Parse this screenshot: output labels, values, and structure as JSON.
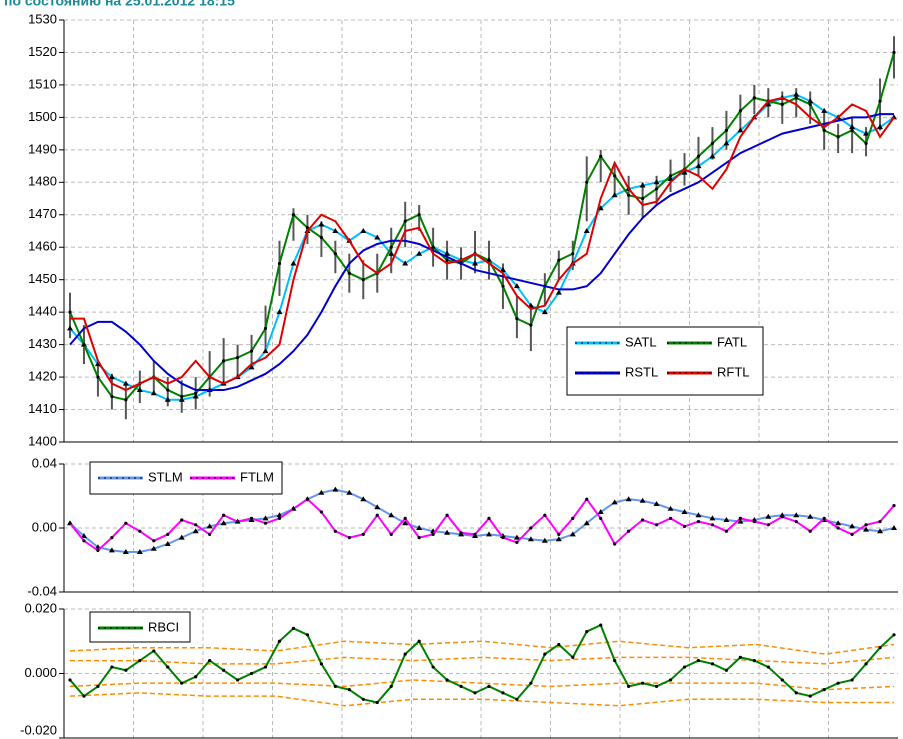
{
  "chart_data": [
    {
      "type": "line",
      "title": "по состоянию на 25.01.2012 18:15",
      "ylim": [
        1400,
        1530
      ],
      "yticks": [
        1400,
        1410,
        1420,
        1430,
        1440,
        1450,
        1460,
        1470,
        1480,
        1490,
        1500,
        1510,
        1520,
        1530
      ],
      "grid": true,
      "bars": {
        "color": "#555555",
        "high": [
          1446,
          1436,
          1424,
          1421,
          1418,
          1422,
          1425,
          1420,
          1419,
          1420,
          1428,
          1432,
          1430,
          1433,
          1442,
          1462,
          1472,
          1470,
          1468,
          1462,
          1458,
          1456,
          1458,
          1466,
          1474,
          1473,
          1466,
          1462,
          1460,
          1465,
          1462,
          1455,
          1445,
          1442,
          1452,
          1459,
          1462,
          1488,
          1490,
          1486,
          1482,
          1480,
          1482,
          1487,
          1489,
          1494,
          1497,
          1502,
          1507,
          1510,
          1509,
          1508,
          1509,
          1508,
          1502,
          1498,
          1500,
          1497,
          1512,
          1525
        ],
        "low": [
          1432,
          1424,
          1414,
          1410,
          1407,
          1412,
          1415,
          1411,
          1409,
          1410,
          1414,
          1418,
          1420,
          1423,
          1428,
          1445,
          1462,
          1461,
          1457,
          1452,
          1446,
          1444,
          1446,
          1452,
          1460,
          1465,
          1454,
          1450,
          1450,
          1452,
          1450,
          1441,
          1432,
          1428,
          1442,
          1450,
          1453,
          1468,
          1480,
          1476,
          1470,
          1469,
          1473,
          1477,
          1479,
          1482,
          1487,
          1490,
          1496,
          1501,
          1500,
          1498,
          1500,
          1498,
          1490,
          1489,
          1489,
          1488,
          1496,
          1512
        ]
      },
      "series": [
        {
          "name": "SATL",
          "color": "#00bfff",
          "marker": "triangle",
          "values": [
            1435,
            1430,
            1424,
            1420,
            1418,
            1416,
            1415,
            1413,
            1413,
            1414,
            1416,
            1418,
            1420,
            1423,
            1428,
            1440,
            1455,
            1465,
            1467,
            1465,
            1462,
            1465,
            1463,
            1458,
            1455,
            1458,
            1460,
            1458,
            1456,
            1455,
            1456,
            1453,
            1448,
            1442,
            1440,
            1446,
            1455,
            1465,
            1472,
            1476,
            1478,
            1479,
            1480,
            1481,
            1483,
            1485,
            1488,
            1492,
            1496,
            1500,
            1504,
            1506,
            1507,
            1505,
            1502,
            1500,
            1497,
            1495,
            1497,
            1500
          ]
        },
        {
          "name": "FATL",
          "color": "#008000",
          "marker": "dot",
          "values": [
            1440,
            1430,
            1420,
            1414,
            1413,
            1418,
            1420,
            1416,
            1414,
            1415,
            1420,
            1425,
            1426,
            1428,
            1435,
            1455,
            1470,
            1466,
            1463,
            1458,
            1452,
            1450,
            1452,
            1460,
            1468,
            1470,
            1460,
            1456,
            1455,
            1458,
            1456,
            1448,
            1438,
            1436,
            1448,
            1456,
            1458,
            1480,
            1488,
            1482,
            1476,
            1475,
            1478,
            1482,
            1484,
            1488,
            1492,
            1496,
            1502,
            1506,
            1505,
            1504,
            1506,
            1504,
            1496,
            1494,
            1496,
            1492,
            1505,
            1520
          ]
        },
        {
          "name": "RSTL",
          "color": "#0000cd",
          "marker": "none",
          "values": [
            1430,
            1435,
            1437,
            1437,
            1434,
            1430,
            1425,
            1421,
            1418,
            1416,
            1416,
            1416,
            1417,
            1419,
            1421,
            1424,
            1428,
            1433,
            1440,
            1448,
            1455,
            1459,
            1461,
            1462,
            1462,
            1461,
            1459,
            1457,
            1455,
            1453,
            1452,
            1451,
            1450,
            1449,
            1448,
            1447,
            1447,
            1448,
            1452,
            1458,
            1464,
            1469,
            1473,
            1476,
            1478,
            1480,
            1483,
            1486,
            1489,
            1491,
            1493,
            1495,
            1496,
            1497,
            1498,
            1499,
            1500,
            1500,
            1501,
            1501
          ]
        },
        {
          "name": "RFTL",
          "color": "#e00000",
          "marker": "none",
          "values": [
            1438,
            1438,
            1425,
            1418,
            1416,
            1418,
            1420,
            1418,
            1420,
            1425,
            1420,
            1418,
            1420,
            1424,
            1426,
            1430,
            1450,
            1465,
            1470,
            1468,
            1462,
            1455,
            1452,
            1455,
            1465,
            1466,
            1458,
            1455,
            1456,
            1458,
            1455,
            1452,
            1445,
            1441,
            1442,
            1450,
            1455,
            1458,
            1475,
            1486,
            1478,
            1473,
            1474,
            1480,
            1484,
            1482,
            1478,
            1484,
            1494,
            1500,
            1505,
            1506,
            1504,
            1500,
            1497,
            1500,
            1504,
            1502,
            1494,
            1500
          ]
        }
      ]
    },
    {
      "type": "line",
      "ylim": [
        -0.04,
        0.04
      ],
      "yticks": [
        -0.04,
        {
          "value": 0,
          "label": "0.00"
        },
        0.04
      ],
      "grid": true,
      "series": [
        {
          "name": "STLM",
          "color": "#6495ed",
          "marker": "triangle",
          "values": [
            0.003,
            -0.005,
            -0.012,
            -0.014,
            -0.015,
            -0.015,
            -0.013,
            -0.01,
            -0.006,
            -0.002,
            0.001,
            0.003,
            0.004,
            0.005,
            0.006,
            0.008,
            0.012,
            0.018,
            0.022,
            0.024,
            0.022,
            0.018,
            0.013,
            0.008,
            0.003,
            0.0,
            -0.002,
            -0.003,
            -0.004,
            -0.005,
            -0.004,
            -0.005,
            -0.006,
            -0.007,
            -0.008,
            -0.007,
            -0.004,
            0.003,
            0.01,
            0.016,
            0.018,
            0.017,
            0.015,
            0.012,
            0.01,
            0.008,
            0.006,
            0.005,
            0.004,
            0.005,
            0.007,
            0.008,
            0.008,
            0.007,
            0.005,
            0.003,
            0.001,
            -0.001,
            -0.002,
            0.0
          ]
        },
        {
          "name": "FTLM",
          "color": "#ff00ff",
          "marker": "dot",
          "values": [
            0.003,
            -0.008,
            -0.014,
            -0.006,
            0.003,
            -0.002,
            -0.008,
            -0.004,
            0.005,
            0.002,
            -0.004,
            0.008,
            0.004,
            0.006,
            0.003,
            0.006,
            0.012,
            0.018,
            0.01,
            -0.002,
            -0.006,
            -0.004,
            0.008,
            -0.004,
            0.006,
            -0.006,
            -0.004,
            0.008,
            -0.003,
            -0.004,
            0.006,
            -0.006,
            -0.009,
            0.0,
            0.008,
            -0.004,
            0.006,
            0.018,
            0.006,
            -0.01,
            -0.002,
            0.005,
            0.002,
            0.006,
            0.001,
            0.004,
            0.002,
            -0.002,
            0.006,
            0.004,
            0.002,
            0.007,
            0.004,
            -0.002,
            0.006,
            0.0,
            -0.004,
            0.002,
            0.004,
            0.014
          ]
        }
      ]
    },
    {
      "type": "line",
      "ylim": [
        -0.02,
        0.02
      ],
      "yticks": [
        {
          "value": -0.02,
          "label": "-0.020"
        },
        {
          "value": 0,
          "label": "0.000"
        },
        {
          "value": 0.02,
          "label": "0.020"
        }
      ],
      "grid": true,
      "bands": {
        "color": "#ff8c00",
        "lines": [
          [
            0.007,
            0.008,
            0.008,
            0.007,
            0.01,
            0.009,
            0.01,
            0.008,
            0.01,
            0.008,
            0.009,
            0.006,
            0.009
          ],
          [
            0.004,
            0.004,
            0.003,
            0.003,
            0.005,
            0.004,
            0.005,
            0.004,
            0.005,
            0.005,
            0.004,
            0.003,
            0.005
          ],
          [
            -0.004,
            -0.003,
            -0.003,
            -0.003,
            -0.004,
            -0.002,
            -0.003,
            -0.004,
            -0.003,
            -0.003,
            -0.003,
            -0.005,
            -0.004
          ],
          [
            -0.007,
            -0.006,
            -0.007,
            -0.007,
            -0.01,
            -0.008,
            -0.008,
            -0.009,
            -0.01,
            -0.008,
            -0.008,
            -0.009,
            -0.009
          ]
        ]
      },
      "series": [
        {
          "name": "RBCI",
          "color": "#008000",
          "marker": "dot",
          "values": [
            -0.002,
            -0.007,
            -0.004,
            0.002,
            0.001,
            0.004,
            0.007,
            0.002,
            -0.003,
            -0.001,
            0.004,
            0.001,
            -0.002,
            0.0,
            0.002,
            0.01,
            0.014,
            0.012,
            0.003,
            -0.004,
            -0.005,
            -0.008,
            -0.009,
            -0.004,
            0.006,
            0.01,
            0.002,
            -0.002,
            -0.004,
            -0.006,
            -0.004,
            -0.006,
            -0.008,
            -0.003,
            0.006,
            0.009,
            0.005,
            0.013,
            0.015,
            0.004,
            -0.004,
            -0.003,
            -0.004,
            -0.002,
            0.002,
            0.004,
            0.003,
            0.001,
            0.005,
            0.004,
            0.002,
            -0.002,
            -0.006,
            -0.007,
            -0.005,
            -0.003,
            -0.002,
            0.003,
            0.008,
            0.012
          ]
        }
      ]
    }
  ]
}
